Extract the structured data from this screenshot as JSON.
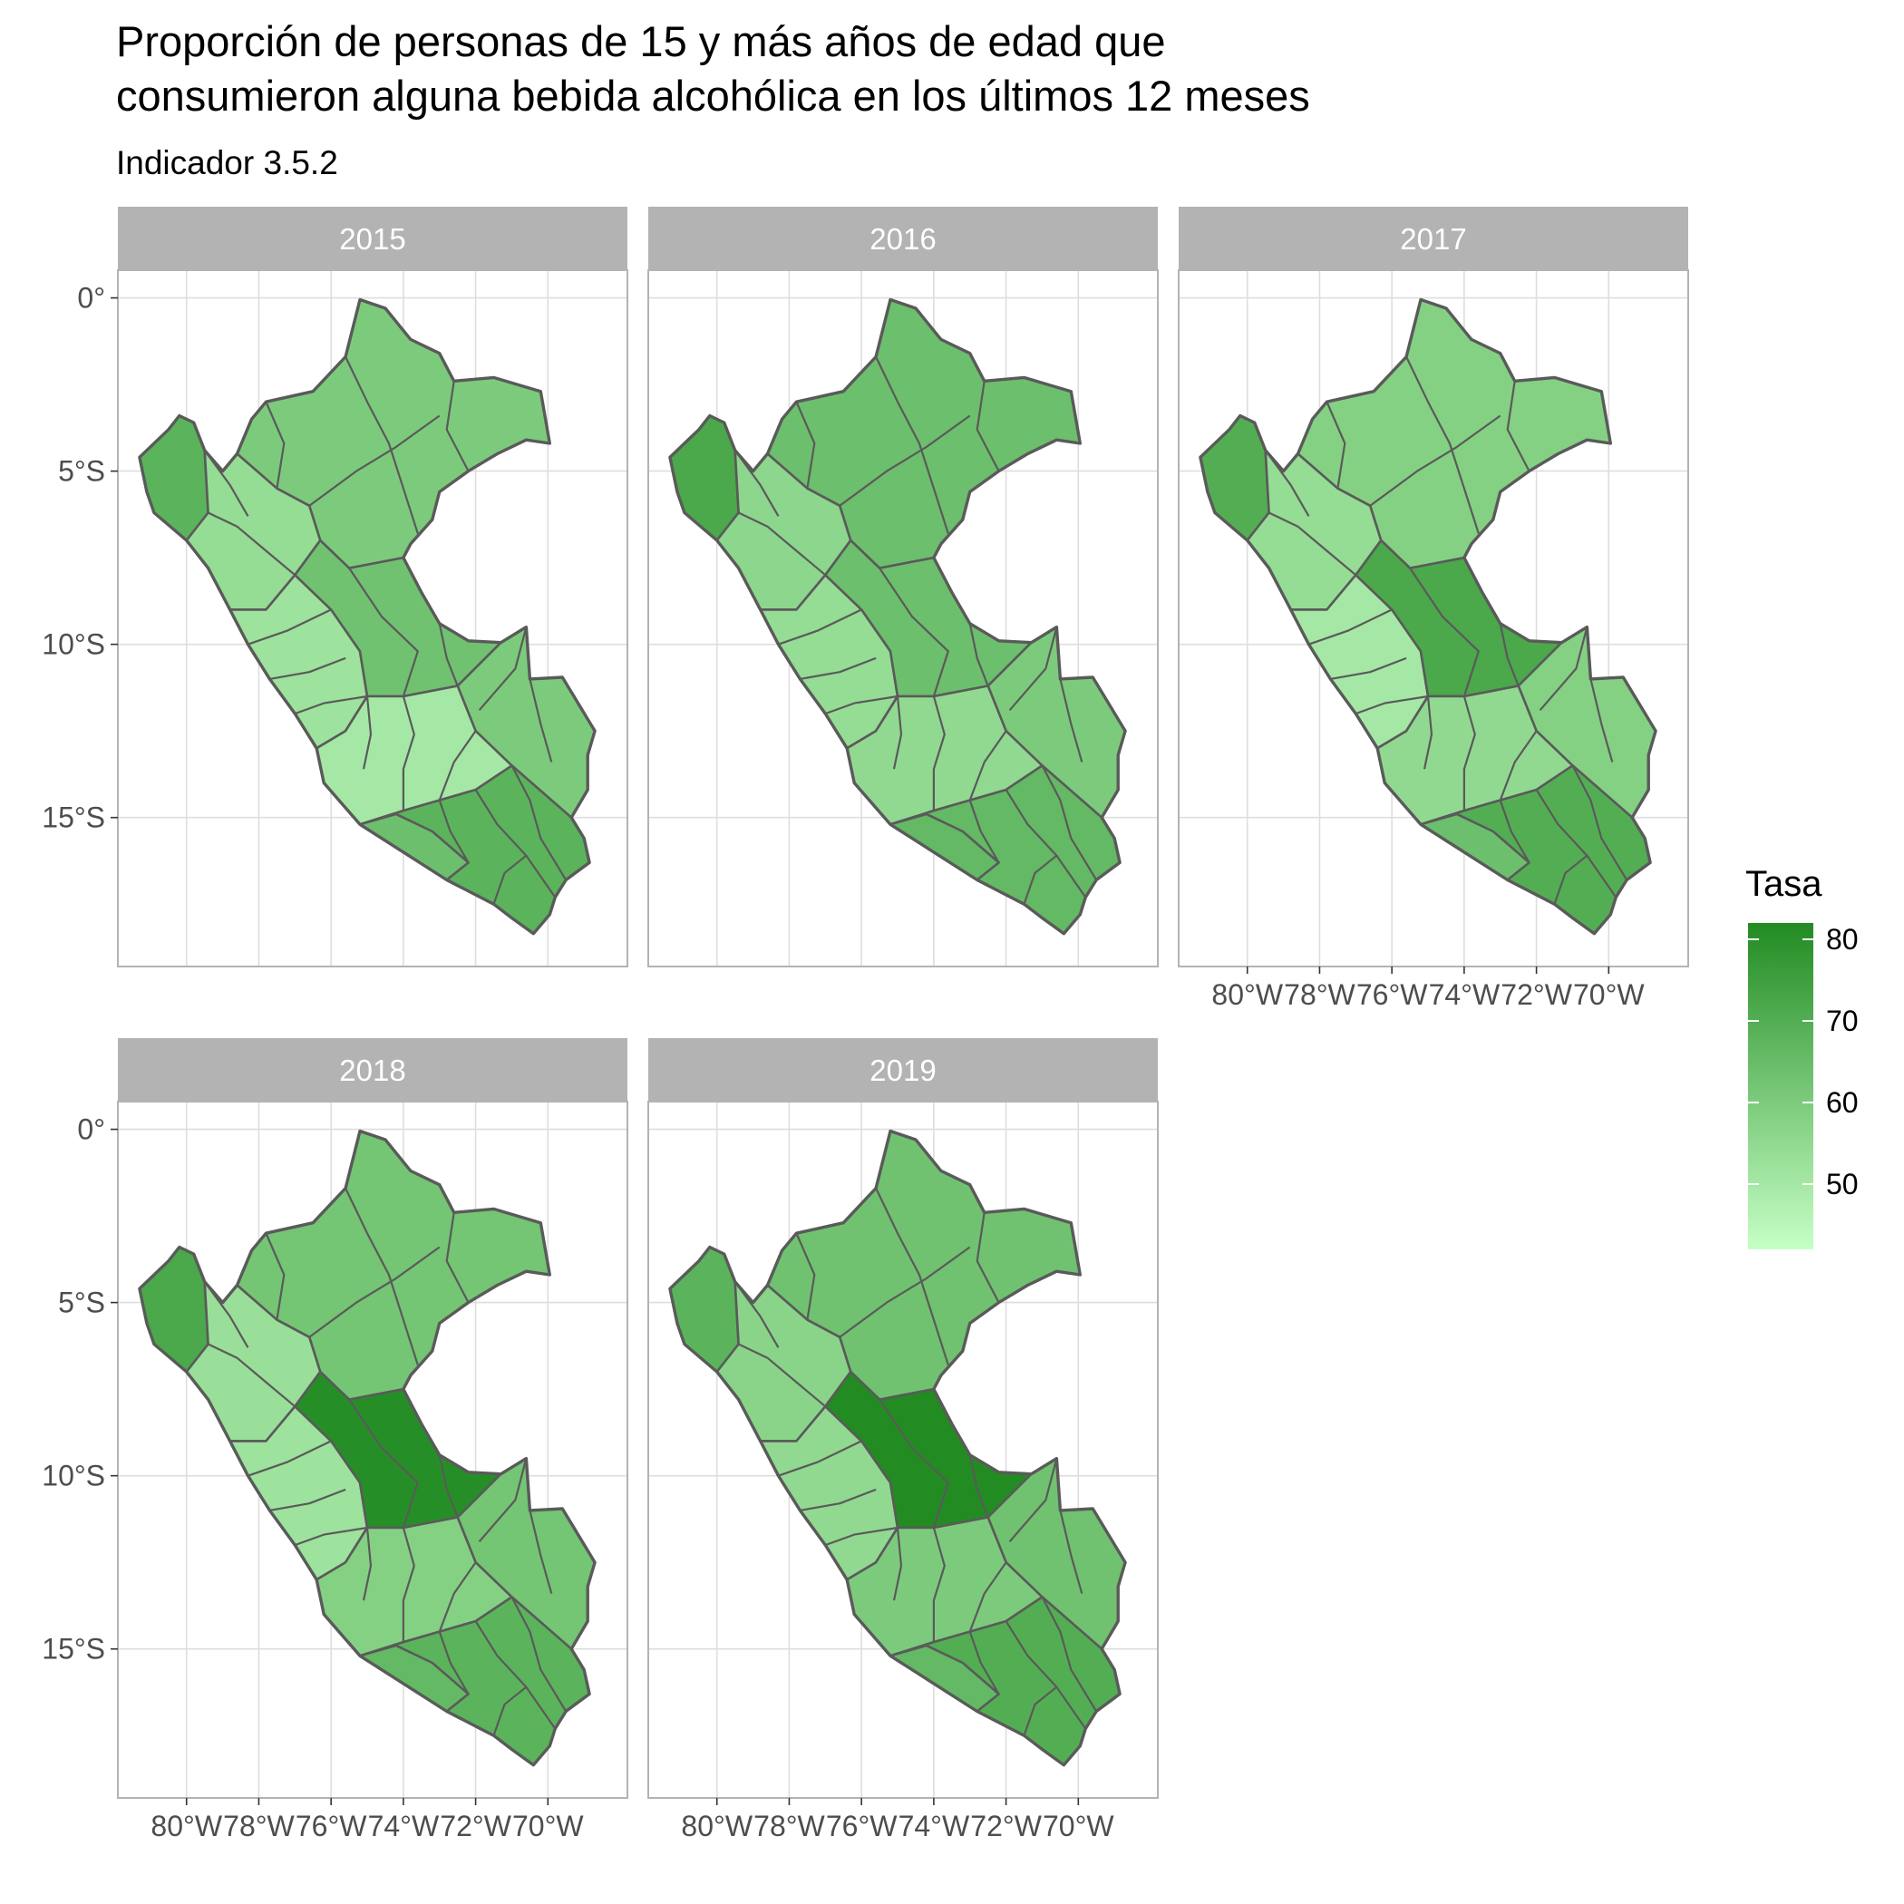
{
  "title_lines": [
    "Proporción de personas de 15 y más años de edad que",
    "consumieron alguna bebida alcohólica en los últimos 12 meses"
  ],
  "subtitle": "Indicador 3.5.2",
  "colors": {
    "low": "#c6ffc6",
    "high": "#228b22",
    "border": "#5a5a5a",
    "strip": "#b3b3b3",
    "grid": "#dedede",
    "panel_border": "#b3b3b3"
  },
  "chart_data": {
    "type": "choropleth map",
    "facet_by": "year",
    "x_ticks": [
      "80°W",
      "78°W",
      "76°W",
      "74°W",
      "72°W",
      "70°W"
    ],
    "y_ticks": [
      "0°",
      "5°S",
      "10°S",
      "15°S"
    ],
    "x_tick_values": [
      -80,
      -78,
      -76,
      -74,
      -72,
      -70
    ],
    "y_tick_values": [
      0,
      -5,
      -10,
      -15
    ],
    "lon_range": [
      -81.9,
      -67.8
    ],
    "lat_range": [
      -19.3,
      0.8
    ],
    "panels": [
      {
        "year": "2015",
        "region_values": {
          "north_lowland": 60,
          "northwest_coast": 68,
          "north_highland": 54,
          "central_andes": 52,
          "central_east": 63,
          "southeast_lowland": 60,
          "south_andes": 50,
          "southern_highland": 68,
          "south_coast": 64
        }
      },
      {
        "year": "2016",
        "region_values": {
          "north_lowland": 64,
          "northwest_coast": 72,
          "north_highland": 56,
          "central_andes": 54,
          "central_east": 64,
          "southeast_lowland": 60,
          "south_andes": 55,
          "southern_highland": 66,
          "south_coast": 66
        }
      },
      {
        "year": "2017",
        "region_values": {
          "north_lowland": 58,
          "northwest_coast": 70,
          "north_highland": 54,
          "central_andes": 50,
          "central_east": 72,
          "southeast_lowland": 58,
          "south_andes": 55,
          "southern_highland": 70,
          "south_coast": 64
        }
      },
      {
        "year": "2018",
        "region_values": {
          "north_lowland": 62,
          "northwest_coast": 72,
          "north_highland": 53,
          "central_andes": 52,
          "central_east": 81,
          "southeast_lowland": 62,
          "south_andes": 58,
          "southern_highland": 68,
          "south_coast": 66
        }
      },
      {
        "year": "2019",
        "region_values": {
          "north_lowland": 63,
          "northwest_coast": 68,
          "north_highland": 57,
          "central_andes": 55,
          "central_east": 82,
          "southeast_lowland": 63,
          "south_andes": 60,
          "southern_highland": 70,
          "south_coast": 66
        }
      }
    ],
    "legend": {
      "title": "Tasa",
      "labels": [
        "80",
        "70",
        "60",
        "50"
      ],
      "values": [
        80,
        70,
        60,
        50
      ],
      "range": [
        42,
        82
      ]
    }
  }
}
